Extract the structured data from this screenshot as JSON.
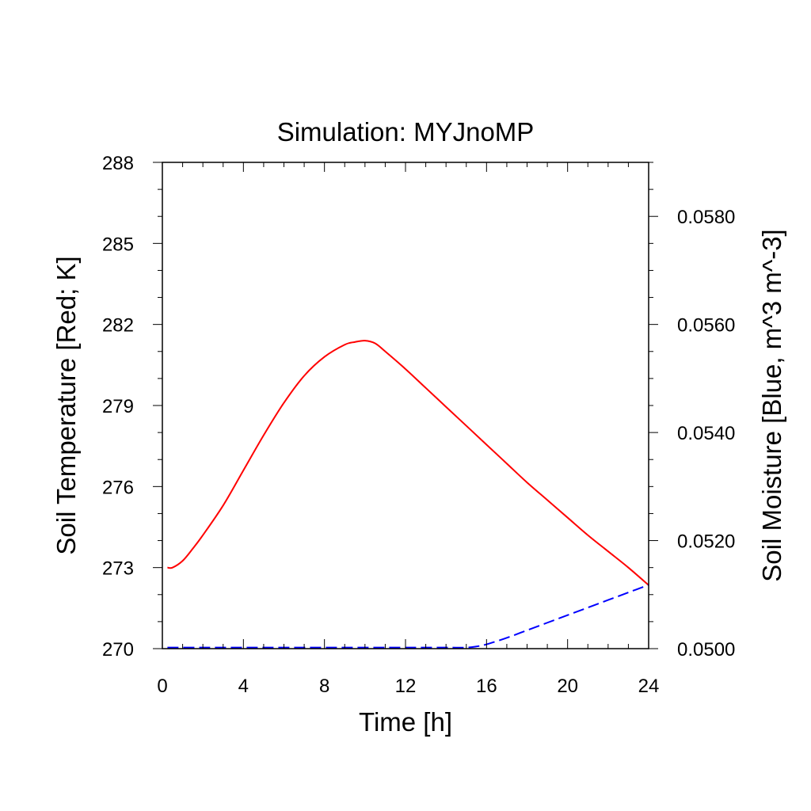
{
  "chart_data": {
    "type": "line",
    "title": "Simulation: MYJnoMP",
    "xlabel": "Time [h]",
    "ylabel_left": "Soil Temperature [Red; K]",
    "ylabel_right": "Soil Moisture [Blue, m^3 m^-3]",
    "xlim": [
      0,
      24
    ],
    "ylim_left": [
      270,
      288
    ],
    "ylim_right": [
      0.05,
      0.059
    ],
    "x_ticks": [
      0,
      4,
      8,
      12,
      16,
      20,
      24
    ],
    "x_tick_labels": [
      "0",
      "4",
      "8",
      "12",
      "16",
      "20",
      "24"
    ],
    "y_left_ticks": [
      270,
      273,
      276,
      279,
      282,
      285,
      288
    ],
    "y_left_tick_labels": [
      "270",
      "273",
      "276",
      "279",
      "282",
      "285",
      "288"
    ],
    "y_right_ticks": [
      0.05,
      0.052,
      0.054,
      0.056,
      0.058
    ],
    "y_right_tick_labels": [
      "0.0500",
      "0.0520",
      "0.0540",
      "0.0560",
      "0.0580"
    ],
    "grid": false,
    "series": [
      {
        "axis": "left",
        "color": "#ff0000",
        "dash": "solid",
        "x": [
          0.25,
          0.5,
          1,
          1.5,
          2,
          3,
          4,
          5,
          6,
          7,
          8,
          9,
          9.5,
          10,
          10.5,
          11,
          12,
          13,
          14,
          15,
          16,
          17,
          18,
          19,
          20,
          21,
          22,
          23,
          24
        ],
        "y": [
          273.0,
          273.0,
          273.25,
          273.7,
          274.2,
          275.3,
          276.6,
          277.9,
          279.1,
          280.1,
          280.8,
          281.25,
          281.35,
          281.4,
          281.3,
          281.0,
          280.35,
          279.65,
          278.95,
          278.25,
          277.55,
          276.85,
          276.15,
          275.5,
          274.85,
          274.2,
          273.6,
          273.0,
          272.35
        ]
      },
      {
        "axis": "right",
        "color": "#0000ff",
        "dash": "dashed",
        "x": [
          0.25,
          2,
          4,
          6,
          8,
          10,
          12,
          14,
          15,
          15.5,
          16,
          17,
          18,
          19,
          20,
          21,
          22,
          23,
          24
        ],
        "y": [
          0.05002,
          0.05002,
          0.05002,
          0.05002,
          0.05002,
          0.05002,
          0.05002,
          0.05002,
          0.05002,
          0.05004,
          0.05008,
          0.0502,
          0.05034,
          0.05048,
          0.05062,
          0.05076,
          0.0509,
          0.05104,
          0.05118
        ]
      }
    ]
  }
}
